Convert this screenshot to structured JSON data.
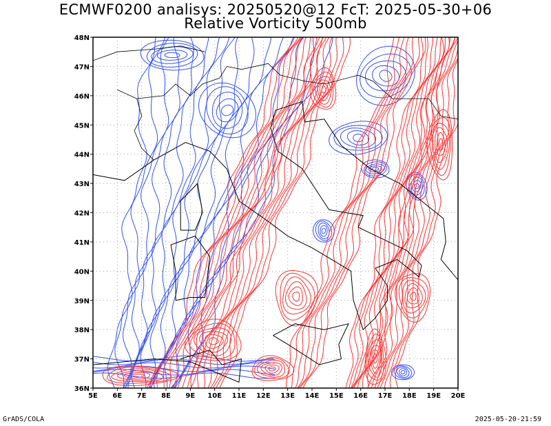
{
  "header": {
    "title_line1": "ECMWF0200 analisys: 20250520@12 FcT: 2025-05-30+06",
    "title_line2": "Relative Vorticity 500mb"
  },
  "footer": {
    "credit": "GrADS/COLA",
    "timestamp": "2025-05-20-21:59"
  },
  "map": {
    "lon_range": [
      5,
      20
    ],
    "lat_range": [
      36,
      48
    ],
    "x_ticks": [
      "5E",
      "6E",
      "7E",
      "8E",
      "9E",
      "10E",
      "11E",
      "12E",
      "13E",
      "14E",
      "15E",
      "16E",
      "17E",
      "18E",
      "19E",
      "20E"
    ],
    "y_ticks": [
      "36N",
      "37N",
      "38N",
      "39N",
      "40N",
      "41N",
      "42N",
      "43N",
      "44N",
      "45N",
      "46N",
      "47N",
      "48N"
    ],
    "colors": {
      "positive_contour": "#ff3030",
      "negative_contour": "#3050ff",
      "coastline": "#000000",
      "grid": "#a0a0a0"
    }
  }
}
